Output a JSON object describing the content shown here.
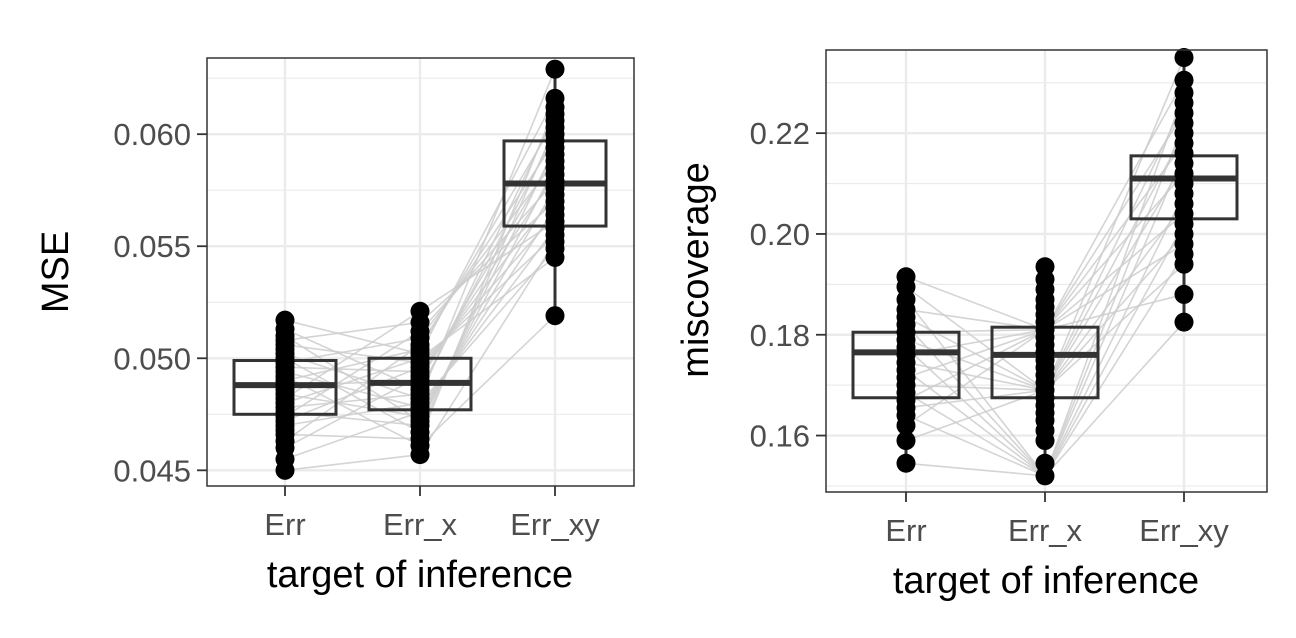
{
  "chart_data": [
    {
      "type": "boxplot",
      "xlabel": "target of inference",
      "ylabel": "MSE",
      "categories": [
        "Err",
        "Err_x",
        "Err_xy"
      ],
      "ylim": [
        0.0443,
        0.0634
      ],
      "y_ticks": [
        0.045,
        0.05,
        0.055,
        0.06
      ],
      "y_tick_labels": [
        "0.045",
        "0.050",
        "0.055",
        "0.060"
      ],
      "grid": true,
      "boxes": [
        {
          "category": "Err",
          "q1": 0.0475,
          "median": 0.0488,
          "q3": 0.0499,
          "whisker_low": 0.045,
          "whisker_high": 0.0517
        },
        {
          "category": "Err_x",
          "q1": 0.0477,
          "median": 0.0489,
          "q3": 0.05,
          "whisker_low": 0.0457,
          "whisker_high": 0.0521
        },
        {
          "category": "Err_xy",
          "q1": 0.0559,
          "median": 0.0578,
          "q3": 0.0597,
          "whisker_low": 0.0519,
          "whisker_high": 0.0629
        }
      ],
      "points": {
        "Err": [
          0.045,
          0.0455,
          0.046,
          0.0463,
          0.0466,
          0.0468,
          0.047,
          0.0472,
          0.0474,
          0.0476,
          0.0478,
          0.048,
          0.0482,
          0.0484,
          0.0486,
          0.0488,
          0.049,
          0.0492,
          0.0494,
          0.0496,
          0.0498,
          0.05,
          0.0502,
          0.0504,
          0.0506,
          0.0508,
          0.051,
          0.0513,
          0.0517
        ],
        "Err_x": [
          0.0457,
          0.0461,
          0.0464,
          0.0467,
          0.047,
          0.0472,
          0.0474,
          0.0476,
          0.0478,
          0.048,
          0.0482,
          0.0484,
          0.0486,
          0.0488,
          0.049,
          0.0492,
          0.0494,
          0.0496,
          0.0498,
          0.05,
          0.0502,
          0.0504,
          0.0506,
          0.0509,
          0.0512,
          0.0516,
          0.0521
        ],
        "Err_xy": [
          0.0519,
          0.0545,
          0.0549,
          0.0552,
          0.0555,
          0.0558,
          0.0561,
          0.0564,
          0.0567,
          0.057,
          0.0573,
          0.0576,
          0.0579,
          0.0582,
          0.0585,
          0.0588,
          0.0591,
          0.0594,
          0.0597,
          0.06,
          0.0603,
          0.0606,
          0.0609,
          0.0612,
          0.0616,
          0.0629
        ]
      }
    },
    {
      "type": "boxplot",
      "xlabel": "target of inference",
      "ylabel": "miscoverage",
      "categories": [
        "Err",
        "Err_x",
        "Err_xy"
      ],
      "ylim": [
        0.1488,
        0.2365
      ],
      "y_ticks": [
        0.16,
        0.18,
        0.2,
        0.22
      ],
      "y_tick_labels": [
        "0.16",
        "0.18",
        "0.20",
        "0.22"
      ],
      "grid": true,
      "boxes": [
        {
          "category": "Err",
          "q1": 0.1675,
          "median": 0.1765,
          "q3": 0.1805,
          "whisker_low": 0.1545,
          "whisker_high": 0.1915
        },
        {
          "category": "Err_x",
          "q1": 0.1675,
          "median": 0.176,
          "q3": 0.1815,
          "whisker_low": 0.152,
          "whisker_high": 0.1935
        },
        {
          "category": "Err_xy",
          "q1": 0.203,
          "median": 0.211,
          "q3": 0.2155,
          "whisker_low": 0.1825,
          "whisker_high": 0.235
        }
      ],
      "points": {
        "Err": [
          0.1545,
          0.159,
          0.162,
          0.164,
          0.1655,
          0.167,
          0.1685,
          0.17,
          0.1715,
          0.173,
          0.1745,
          0.176,
          0.1775,
          0.179,
          0.1805,
          0.182,
          0.1835,
          0.185,
          0.187,
          0.1895,
          0.1915
        ],
        "Err_x": [
          0.152,
          0.1545,
          0.159,
          0.161,
          0.163,
          0.1645,
          0.166,
          0.1675,
          0.169,
          0.1705,
          0.172,
          0.1735,
          0.175,
          0.1765,
          0.178,
          0.1795,
          0.181,
          0.1825,
          0.184,
          0.1855,
          0.187,
          0.189,
          0.191,
          0.1935
        ],
        "Err_xy": [
          0.1825,
          0.188,
          0.194,
          0.196,
          0.198,
          0.2,
          0.202,
          0.204,
          0.206,
          0.208,
          0.21,
          0.212,
          0.214,
          0.216,
          0.218,
          0.22,
          0.222,
          0.224,
          0.226,
          0.228,
          0.2305,
          0.235
        ]
      }
    }
  ]
}
